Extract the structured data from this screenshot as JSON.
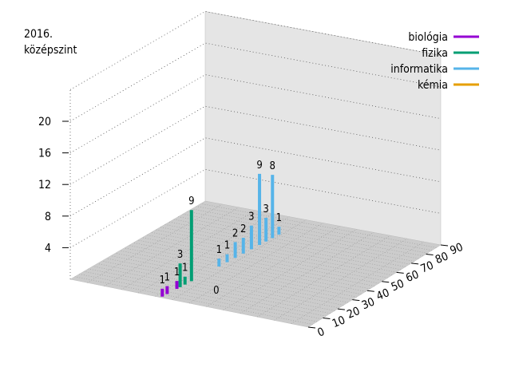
{
  "chart_data": {
    "type": "bar",
    "subtype": "3d-impulse",
    "title_lines": [
      "2016.",
      "középszint"
    ],
    "zlim": [
      0,
      24
    ],
    "z_ticks": [
      4,
      8,
      12,
      16,
      20
    ],
    "x_ticks": [
      0,
      10,
      20,
      30,
      40,
      50,
      60,
      70,
      80,
      90
    ],
    "grid": true,
    "legend_position": "top-right",
    "series": [
      {
        "name": "biológia",
        "color": "#9400d3",
        "points": [
          {
            "x": 1,
            "z": 1
          },
          {
            "x": 4,
            "z": 1
          },
          {
            "x": 10,
            "z": 1
          }
        ]
      },
      {
        "name": "fizika",
        "color": "#009e73",
        "points": [
          {
            "x": 12,
            "z": 3
          },
          {
            "x": 15,
            "z": 1
          },
          {
            "x": 19,
            "z": 9
          }
        ]
      },
      {
        "name": "informatika",
        "color": "#56b4e9",
        "points": [
          {
            "x": 36,
            "z": 1
          },
          {
            "x": 41,
            "z": 1
          },
          {
            "x": 46,
            "z": 2
          },
          {
            "x": 51,
            "z": 2
          },
          {
            "x": 56,
            "z": 3
          },
          {
            "x": 61,
            "z": 9
          },
          {
            "x": 65,
            "z": 3
          },
          {
            "x": 69,
            "z": 8
          },
          {
            "x": 73,
            "z": 1
          }
        ]
      },
      {
        "name": "kémia",
        "color": "#e69f00",
        "points": []
      }
    ],
    "annotations": [
      {
        "text": "0"
      }
    ]
  }
}
